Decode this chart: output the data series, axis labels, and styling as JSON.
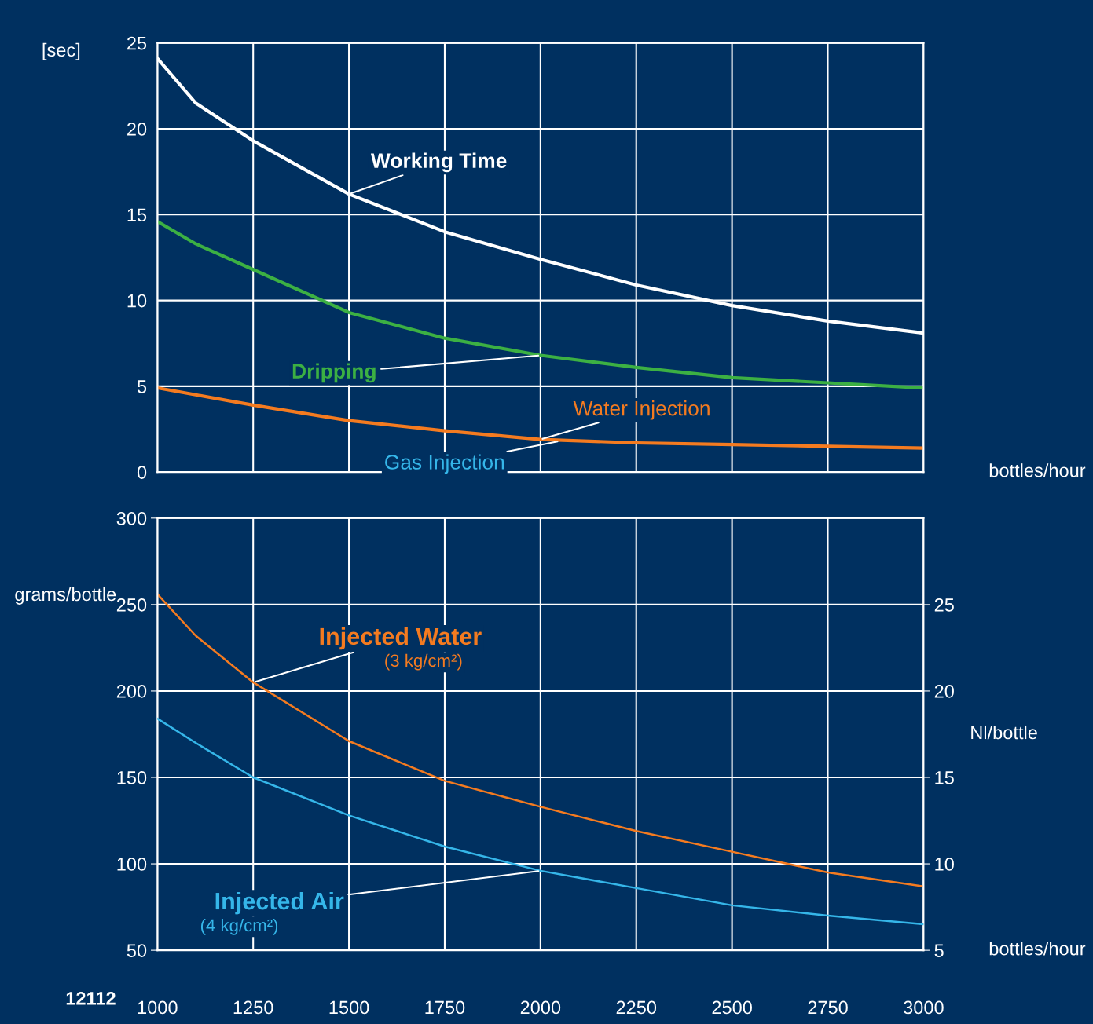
{
  "chart_data": [
    {
      "type": "line",
      "ylabel": "[sec]",
      "xlabel": "bottles/hour",
      "xlim": [
        1000,
        3000
      ],
      "ylim": [
        0,
        25
      ],
      "xticks": [
        1000,
        1250,
        1500,
        1750,
        2000,
        2250,
        2500,
        2750,
        3000
      ],
      "yticks": [
        0,
        5,
        10,
        15,
        20,
        25
      ],
      "grid": true,
      "legend": false,
      "tick_labels": "y",
      "marker": "none",
      "x": [
        1000,
        1100,
        1250,
        1500,
        1750,
        2000,
        2250,
        2500,
        2750,
        3000
      ],
      "series": [
        {
          "name": "Working Time",
          "color": "#ffffff",
          "values": [
            24.1,
            21.5,
            19.3,
            16.2,
            14.0,
            12.4,
            10.9,
            9.7,
            8.8,
            8.1
          ]
        },
        {
          "name": "Dripping",
          "color": "#3cb043",
          "values": [
            14.6,
            13.3,
            11.8,
            9.3,
            7.8,
            6.8,
            6.1,
            5.5,
            5.2,
            4.9
          ]
        },
        {
          "name": "Water Injection",
          "color": "#f47b20",
          "values": [
            4.9,
            4.5,
            3.9,
            3.0,
            2.4,
            1.9,
            1.7,
            1.6,
            1.5,
            1.4
          ]
        }
      ],
      "annotations": [
        {
          "text": "Gas Injection",
          "x": 2050,
          "y": 1.8
        }
      ]
    },
    {
      "type": "line",
      "ylabel": "grams/bottle",
      "y2label": "Nl/bottle",
      "xlabel": "bottles/hour",
      "xlim": [
        1000,
        3000
      ],
      "ylim": [
        50,
        300
      ],
      "y2lim": [
        5,
        30
      ],
      "xticks": [
        1000,
        1250,
        1500,
        1750,
        2000,
        2250,
        2500,
        2750,
        3000
      ],
      "yticks": [
        50,
        100,
        150,
        200,
        250,
        300
      ],
      "y2ticks": [
        5,
        10,
        15,
        20,
        25
      ],
      "grid": true,
      "legend": false,
      "marker": "none",
      "x": [
        1000,
        1100,
        1250,
        1500,
        1750,
        2000,
        2250,
        2500,
        2750,
        3000
      ],
      "series": [
        {
          "name": "Injected Water\n(3 kg/cm²)",
          "color": "#f47b20",
          "values": [
            256,
            232,
            205,
            171,
            148,
            133,
            119,
            107,
            95,
            87
          ]
        },
        {
          "name": "Injected Air\n(4 kg/cm²)",
          "color": "#35b6e9",
          "axis": "y2",
          "values": [
            18.4,
            17.0,
            15.0,
            12.8,
            11.0,
            9.6,
            8.6,
            7.6,
            7.0,
            6.5
          ]
        }
      ],
      "annotations": [
        "12112"
      ]
    }
  ]
}
